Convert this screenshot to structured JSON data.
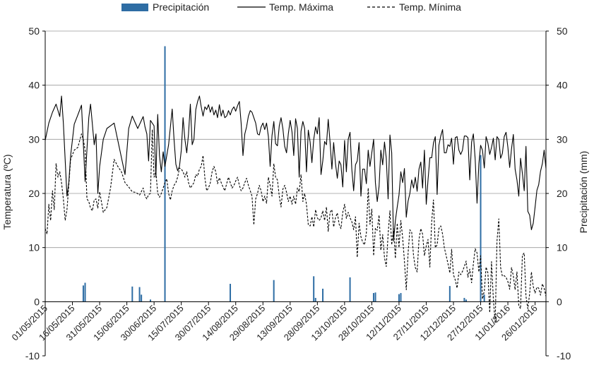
{
  "chart_data": {
    "type": "bar+line",
    "legend": {
      "position": "top",
      "items": [
        {
          "name": "Precipitación",
          "style": "bar",
          "color": "#2e6da4"
        },
        {
          "name": "Temp. Máxima",
          "style": "solid-line",
          "color": "#000000"
        },
        {
          "name": "Temp. Mínima",
          "style": "dashed-line",
          "color": "#000000"
        }
      ]
    },
    "ylabel_left": "Temperatura (ºC)",
    "ylabel_right": "Precipitación (mm)",
    "ylim_left": [
      -10,
      50
    ],
    "ylim_right": [
      -10,
      50
    ],
    "yticks": [
      -10,
      0,
      10,
      20,
      30,
      40,
      50
    ],
    "grid": "horizontal",
    "x_range_days": [
      0,
      276
    ],
    "x_tick_days": [
      0,
      15,
      30,
      45,
      60,
      75,
      90,
      105,
      120,
      135,
      150,
      165,
      180,
      195,
      210,
      225,
      240,
      255,
      270
    ],
    "x_tick_labels": [
      "01/05/2015",
      "16/05/2015",
      "31/05/2015",
      "15/06/2015",
      "30/06/2015",
      "15/07/2015",
      "30/07/2015",
      "14/08/2015",
      "29/08/2015",
      "13/09/2015",
      "28/09/2015",
      "13/10/2015",
      "28/10/2015",
      "12/11/2015",
      "27/11/2015",
      "12/12/2015",
      "27/12/2015",
      "11/01/2016",
      "26/01/2016"
    ],
    "series": [
      {
        "name": "Temp. Máxima",
        "day": [
          0,
          2,
          4,
          6,
          8,
          9,
          10,
          12,
          13,
          14,
          16,
          18,
          20,
          22,
          24,
          25,
          27,
          28,
          29,
          30,
          32,
          33,
          34,
          36,
          38,
          44,
          46,
          48,
          51,
          54,
          55,
          56,
          57,
          58,
          60,
          61,
          62,
          63,
          64,
          65,
          66,
          68,
          70,
          71,
          72,
          73,
          74,
          75,
          76,
          77,
          78,
          79,
          80,
          81,
          82,
          83,
          84,
          85,
          86,
          87,
          88,
          89,
          90,
          91,
          92,
          93,
          94,
          95,
          96,
          97,
          98,
          99,
          100,
          101,
          102,
          103,
          104,
          105,
          106,
          107,
          108,
          109,
          110,
          111,
          112,
          113,
          114,
          115,
          116,
          117,
          118,
          119,
          120,
          121,
          122,
          123,
          124,
          125,
          126,
          127,
          128,
          129,
          130,
          131,
          132,
          133,
          134,
          135,
          136,
          137,
          138,
          139,
          140,
          141,
          142,
          143,
          144,
          145,
          146,
          147,
          148,
          149,
          150,
          151,
          152,
          153,
          154,
          155,
          156,
          157,
          158,
          159,
          160,
          161,
          162,
          163,
          164,
          165,
          166,
          167,
          168,
          169,
          170,
          171,
          172,
          173,
          174,
          175,
          176,
          177,
          178,
          179,
          180,
          181,
          182,
          183,
          184,
          185,
          186,
          187,
          188,
          189,
          190,
          191,
          192,
          193,
          194,
          195,
          196,
          197,
          198,
          199,
          200,
          201,
          202,
          203,
          204,
          205,
          206,
          207,
          208,
          209,
          210,
          211,
          212,
          213,
          214,
          215,
          216,
          217,
          218,
          219,
          220,
          221,
          222,
          223,
          224,
          225,
          226,
          227,
          228,
          229,
          230,
          231,
          232,
          233,
          234,
          235,
          236,
          237,
          238,
          239,
          240,
          241,
          242,
          243,
          244,
          245,
          246,
          247,
          248,
          249,
          250,
          251,
          252,
          253,
          254,
          255,
          256,
          257,
          258,
          259,
          260,
          261,
          262,
          263,
          264,
          265,
          266,
          267,
          268,
          269,
          270,
          271,
          272,
          273,
          274,
          275,
          276
        ],
        "values": [
          29.8,
          33,
          35,
          36.5,
          34.2,
          38,
          33,
          19.5,
          22,
          27,
          32.8,
          34.5,
          36.3,
          22.2,
          34,
          36.5,
          29,
          31,
          20,
          25,
          30,
          31,
          32,
          32.5,
          33,
          23.5,
          32,
          34.3,
          32,
          34.2,
          32.3,
          31,
          26,
          33.5,
          32.5,
          23,
          34.6,
          27,
          24,
          27.7,
          25,
          29,
          35.6,
          30,
          25.4,
          24.2,
          25,
          28,
          34,
          30,
          27.5,
          31,
          36.5,
          29,
          30,
          35.5,
          37,
          38,
          36,
          34.3,
          36,
          35.5,
          36.4,
          35,
          36,
          34.5,
          35.4,
          34,
          36.4,
          34.3,
          35.4,
          34,
          34.3,
          35.3,
          34.5,
          35.5,
          36,
          35.2,
          36.2,
          37,
          33,
          27,
          31,
          32.3,
          34.3,
          35.3,
          35,
          34,
          33,
          31,
          30.8,
          32.3,
          33,
          31.8,
          33,
          30.5,
          25,
          30.7,
          33.3,
          29.2,
          28.8,
          32.5,
          34,
          32,
          28.7,
          27.5,
          31,
          33.5,
          31.4,
          27,
          33.8,
          32,
          23,
          31.5,
          33.3,
          32,
          24,
          31.7,
          29.5,
          25.7,
          30,
          32.3,
          31,
          34,
          23.5,
          26,
          29.6,
          29,
          33.7,
          29.5,
          24.5,
          29.4,
          25.5,
          22.8,
          26,
          25.3,
          21.2,
          29.8,
          24,
          30,
          31.3,
          24.5,
          20.5,
          25.3,
          26,
          29.4,
          19.5,
          24.5,
          24.5,
          21.8,
          28,
          25,
          27.5,
          30,
          22,
          18.5,
          21.3,
          28,
          25.3,
          29.5,
          26.5,
          19,
          30.8,
          27.5,
          11.2,
          15,
          17.5,
          19.7,
          24,
          22,
          24.6,
          15.6,
          18.6,
          20,
          22.5,
          21,
          23,
          20.4,
          24.5,
          25.8,
          21,
          28,
          18,
          22.5,
          26.6,
          26.6,
          29.3,
          30.5,
          19.8,
          28.9,
          30.6,
          31.8,
          27.5,
          27.5,
          29,
          28.7,
          30.2,
          25.4,
          30.3,
          30.5,
          28,
          27.2,
          28,
          30.6,
          30.6,
          30.3,
          22.5,
          29.5,
          31,
          26.3,
          18.2,
          25.5,
          28.9,
          28,
          24.7,
          30.5,
          29.3,
          27.2,
          28.5,
          30.2,
          26.2,
          30.5,
          30,
          26.5,
          27.4,
          30.5,
          31.3,
          28.5,
          24.8,
          28.2,
          30.9,
          24.5,
          22.5,
          19.5,
          26.5,
          23.7,
          20.5,
          28.7,
          16.7,
          16,
          13.3,
          14.5,
          17.5,
          20.6,
          21.6,
          24.1,
          25.5,
          28,
          24.6,
          19.4,
          11.6,
          20.5,
          25.5,
          26.5
        ]
      },
      {
        "name": "Temp. Mínima",
        "day": [
          0,
          1,
          2,
          3,
          4,
          5,
          6,
          7,
          8,
          9,
          10,
          11,
          12,
          13,
          14,
          16,
          18,
          20,
          21,
          22,
          23,
          24,
          25,
          26,
          27,
          28,
          29,
          30,
          32,
          34,
          36,
          38,
          40,
          42,
          44,
          46,
          48,
          50,
          52,
          54,
          55,
          56,
          57,
          58,
          59,
          60,
          61,
          62,
          63,
          64,
          65,
          66,
          67,
          68,
          69,
          70,
          71,
          72,
          73,
          74,
          75,
          76,
          77,
          78,
          79,
          80,
          81,
          82,
          83,
          84,
          85,
          86,
          87,
          88,
          89,
          90,
          91,
          92,
          93,
          94,
          95,
          96,
          97,
          98,
          99,
          100,
          101,
          102,
          103,
          104,
          105,
          106,
          107,
          108,
          109,
          110,
          111,
          112,
          113,
          114,
          115,
          116,
          117,
          118,
          119,
          120,
          121,
          122,
          123,
          124,
          125,
          126,
          127,
          128,
          129,
          130,
          131,
          132,
          133,
          134,
          135,
          136,
          137,
          138,
          139,
          140,
          141,
          142,
          143,
          144,
          145,
          146,
          147,
          148,
          149,
          150,
          151,
          152,
          153,
          154,
          155,
          156,
          157,
          158,
          159,
          160,
          161,
          162,
          163,
          164,
          165,
          166,
          167,
          168,
          169,
          170,
          171,
          172,
          173,
          174,
          175,
          176,
          177,
          178,
          179,
          180,
          181,
          182,
          183,
          184,
          185,
          186,
          187,
          188,
          189,
          190,
          191,
          192,
          193,
          194,
          195,
          196,
          197,
          198,
          199,
          200,
          201,
          202,
          203,
          204,
          205,
          206,
          207,
          208,
          209,
          210,
          211,
          212,
          213,
          214,
          215,
          216,
          217,
          218,
          219,
          220,
          221,
          222,
          223,
          224,
          225,
          226,
          227,
          228,
          229,
          230,
          231,
          232,
          233,
          234,
          235,
          236,
          237,
          238,
          239,
          240,
          241,
          242,
          243,
          244,
          245,
          246,
          247,
          248,
          249,
          250,
          251,
          252,
          253,
          254,
          255,
          256,
          257,
          258,
          259,
          260,
          261,
          262,
          263,
          264,
          265,
          266,
          267,
          268,
          269,
          270,
          271,
          272,
          273,
          274,
          275,
          276
        ],
        "values": [
          13.5,
          12.5,
          18,
          15,
          20.5,
          17,
          25.5,
          23,
          24,
          22,
          19,
          15,
          17,
          21.5,
          26.3,
          28,
          28.5,
          31,
          30,
          28,
          19,
          18.5,
          17.3,
          16.8,
          18.8,
          19,
          17.3,
          20.3,
          16.5,
          17.4,
          21,
          26.3,
          25,
          24,
          22,
          21.2,
          20.3,
          20.2,
          19.7,
          21,
          19.5,
          19,
          19.8,
          20,
          31.8,
          23,
          24,
          20,
          19.3,
          20,
          21,
          22,
          22.7,
          20,
          18.8,
          20.5,
          21.5,
          22,
          23,
          24.7,
          24.5,
          24,
          23,
          24,
          22,
          21,
          21.5,
          22,
          23.5,
          23.2,
          24.5,
          25,
          27,
          22.8,
          20.5,
          21,
          22,
          24,
          25,
          24,
          21.8,
          22.9,
          22,
          21.2,
          20.5,
          21.8,
          23,
          22,
          21,
          21.5,
          22.3,
          23,
          21.5,
          20.5,
          21,
          22,
          22.8,
          21.5,
          20.5,
          19.5,
          14.2,
          19,
          20,
          21.5,
          20.5,
          18.5,
          19.5,
          18.2,
          23,
          21.5,
          19.5,
          25.5,
          23,
          22.5,
          19.5,
          17.5,
          20.8,
          21.5,
          20.2,
          18.5,
          19.5,
          18,
          19.5,
          18,
          21,
          20.3,
          23.5,
          18.5,
          20,
          18,
          14.2,
          14,
          15.7,
          13.8,
          17,
          15.5,
          15,
          15.5,
          16.8,
          15,
          17.5,
          13,
          16.5,
          17,
          13.8,
          15.5,
          16.4,
          14.3,
          13.5,
          16.5,
          18,
          15.4,
          16.5,
          15.5,
          14.8,
          13.3,
          15.7,
          8.2,
          14.5,
          12,
          11,
          10.5,
          12.7,
          21,
          14.3,
          17.1,
          8.5,
          13.6,
          13.2,
          16,
          9.5,
          12.4,
          8.1,
          6.5,
          12.5,
          16.8,
          10.5,
          13.5,
          8,
          14.5,
          10,
          15,
          11.8,
          7.5,
          2.2,
          9,
          13.3,
          12.8,
          8.5,
          6.3,
          5.5,
          11.5,
          13.5,
          12.5,
          8.5,
          10.3,
          11.5,
          6.4,
          14.8,
          18.8,
          10,
          10.5,
          13.5,
          14,
          12.5,
          10,
          8.5,
          7,
          5.3,
          9.7,
          5,
          4,
          2.5,
          5.5,
          5,
          5.6,
          6.5,
          7.5,
          4.5,
          6,
          3.5,
          7,
          9.8,
          9,
          5.5,
          8.5,
          0.5,
          2,
          6.4,
          5.3,
          -2,
          7.4,
          0.5,
          -4,
          11.1,
          15.3,
          6.3,
          4.7,
          4.8,
          4.5,
          3.7,
          2.3,
          6.3,
          4.8,
          2.2,
          5.5,
          -0.7,
          -1.3,
          8.6,
          9,
          1,
          -1.3,
          1.5,
          5.5,
          2.8,
          1.6,
          2.7,
          2.5,
          1.2,
          3.3,
          2.5,
          1,
          2.8,
          0,
          2.5,
          0.8,
          1.3,
          6.8,
          6.6,
          5.3,
          3.1,
          -2.5,
          1.9,
          4.2,
          7.8
        ]
      },
      {
        "name": "Precipitación",
        "day": [
          21,
          22,
          48,
          52,
          53,
          58,
          66,
          102,
          126,
          148,
          149,
          153,
          168,
          181,
          182,
          195,
          196,
          223,
          231,
          232,
          240,
          242
        ],
        "values": [
          3,
          3.5,
          2.8,
          2.7,
          1.3,
          0.4,
          47.2,
          3.3,
          4,
          4.7,
          0.7,
          2.4,
          4.5,
          1.6,
          1.7,
          1.4,
          1.6,
          2.9,
          0.7,
          0.4,
          27.1,
          1.3
        ]
      }
    ]
  }
}
